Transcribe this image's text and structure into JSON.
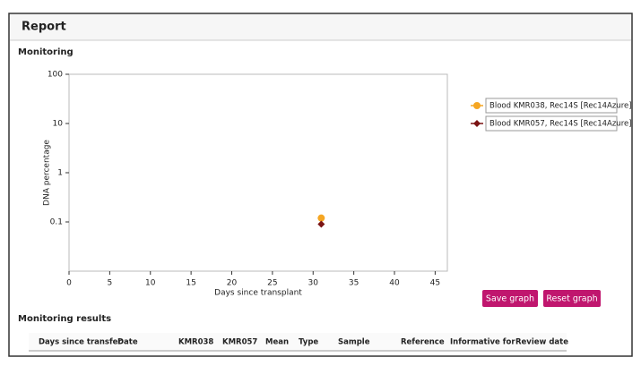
{
  "page_title": "Report",
  "section_title": "Monitoring",
  "chart_data": {
    "type": "scatter",
    "y_label": "DNA percentage",
    "x_label": "Days since transplant",
    "xlim": [
      0,
      46.5
    ],
    "xticks": [
      0,
      5,
      10,
      15,
      20,
      25,
      30,
      35,
      40,
      45
    ],
    "ylim": [
      0.01,
      100
    ],
    "yticks": [
      100,
      10,
      1,
      0.1
    ],
    "y_scale": "log",
    "series": [
      {
        "name": "Blood KMR038, Rec14S [Rec14Azure]",
        "color": "#f5a623",
        "marker": "circle",
        "x": [
          31
        ],
        "values": [
          0.12
        ]
      },
      {
        "name": "Blood KMR057, Rec14S [Rec14Azure]",
        "color": "#7b1414",
        "marker": "diamond",
        "x": [
          31
        ],
        "values": [
          0.09
        ]
      }
    ]
  },
  "buttons": [
    "Save graph",
    "Reset graph"
  ],
  "results": {
    "title": "Monitoring results",
    "columns": [
      "Days since transfer",
      "Date",
      "KMR038",
      "KMR057",
      "Mean",
      "Type",
      "Sample",
      "Reference",
      "Informative for",
      "Review date"
    ]
  }
}
